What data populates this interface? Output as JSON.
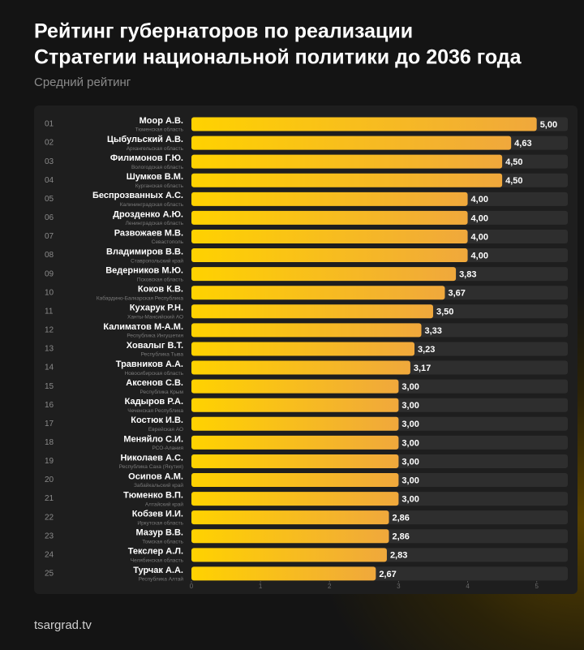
{
  "chart_data": {
    "type": "hbar",
    "title": [
      "Рейтинг губернаторов по реализации",
      "Стратегии национальной политики до 2036 года"
    ],
    "subtitle": "Средний рейтинг",
    "source": "tsargrad.tv",
    "ranks": [
      "01",
      "02",
      "03",
      "04",
      "05",
      "06",
      "07",
      "08",
      "09",
      "10",
      "11",
      "12",
      "13",
      "14",
      "15",
      "16",
      "17",
      "18",
      "19",
      "20",
      "21",
      "22",
      "23",
      "24",
      "25"
    ],
    "categories": [
      "Моор А.В.",
      "Цыбульский А.В.",
      "Филимонов Г.Ю.",
      "Шумков В.М.",
      "Беспрозванных А.С.",
      "Дрозденко А.Ю.",
      "Развожаев М.В.",
      "Владимиров В.В.",
      "Ведерников М.Ю.",
      "Коков К.В.",
      "Кухарук Р.Н.",
      "Калиматов М-А.М.",
      "Ховалыг В.Т.",
      "Травников А.А.",
      "Аксенов С.В.",
      "Кадыров Р.А.",
      "Костюк И.В.",
      "Меняйло С.И.",
      "Николаев А.С.",
      "Осипов А.М.",
      "Тюменко В.П.",
      "Кобзев И.И.",
      "Мазур В.В.",
      "Текслер А.Л.",
      "Турчак А.А."
    ],
    "regions": [
      "Тюменская область",
      "Архангельская область",
      "Вологодская область",
      "Курганская область",
      "Калининградская область",
      "Ленинградская область",
      "Севастополь",
      "Ставропольский край",
      "Псковская область",
      "Кабардино-Балкарская Республика",
      "Ханты-Мансийский АО",
      "Республика Ингушетия",
      "Республика Тыва",
      "Новосибирская область",
      "Республика Крым",
      "Чеченская Республика",
      "Еврейская АО",
      "РСО-Алания",
      "Республика Саха (Якутия)",
      "Забайкальский край",
      "Алтайский край",
      "Иркутская область",
      "Томская область",
      "Челябинская область",
      "Республика Алтай"
    ],
    "values": [
      5,
      4.63,
      4.5,
      4.5,
      4,
      4,
      4,
      4,
      3.83,
      3.67,
      3.5,
      3.33,
      3.23,
      3.17,
      3,
      3,
      3,
      3,
      3,
      3,
      3,
      2.86,
      2.86,
      2.83,
      2.67
    ],
    "value_labels": [
      "5,00",
      "4,63",
      "4,50",
      "4,50",
      "4,00",
      "4,00",
      "4,00",
      "4,00",
      "3,83",
      "3,67",
      "3,50",
      "3,33",
      "3,23",
      "3,17",
      "3,00",
      "3,00",
      "3,00",
      "3,00",
      "3,00",
      "3,00",
      "3,00",
      "2,86",
      "2,86",
      "2,83",
      "2,67"
    ],
    "color": [
      "#ffd200",
      "#f0a83c"
    ],
    "xlim": [
      0,
      5.45
    ],
    "xticks": [
      0,
      1,
      2,
      3,
      4,
      5
    ]
  }
}
